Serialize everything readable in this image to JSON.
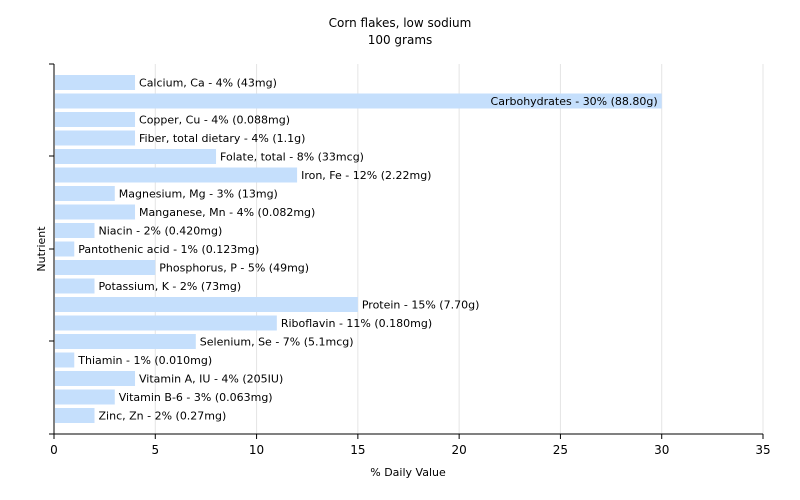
{
  "chart_data": {
    "type": "bar",
    "orientation": "horizontal",
    "title": "Corn flakes, low sodium",
    "subtitle": "100 grams",
    "xlabel": "% Daily Value",
    "ylabel": "Nutrient",
    "xlim": [
      0,
      35
    ],
    "xticks": [
      "0",
      "5",
      "10",
      "15",
      "20",
      "25",
      "30",
      "35"
    ],
    "grid": "vertical",
    "bar_color": "#c5dffc",
    "categories": [
      "Calcium, Ca",
      "Carbohydrates",
      "Copper, Cu",
      "Fiber, total dietary",
      "Folate, total",
      "Iron, Fe",
      "Magnesium, Mg",
      "Manganese, Mn",
      "Niacin",
      "Pantothenic acid",
      "Phosphorus, P",
      "Potassium, K",
      "Protein",
      "Riboflavin",
      "Selenium, Se",
      "Thiamin",
      "Vitamin A, IU",
      "Vitamin B-6",
      "Zinc, Zn"
    ],
    "values": [
      4,
      30,
      4,
      4,
      8,
      12,
      3,
      4,
      2,
      1,
      5,
      2,
      15,
      11,
      7,
      1,
      4,
      3,
      2
    ],
    "labels": [
      "Calcium, Ca - 4% (43mg)",
      "Carbohydrates - 30% (88.80g)",
      "Copper, Cu - 4% (0.088mg)",
      "Fiber, total dietary - 4% (1.1g)",
      "Folate, total - 8% (33mcg)",
      "Iron, Fe - 12% (2.22mg)",
      "Magnesium, Mg - 3% (13mg)",
      "Manganese, Mn - 4% (0.082mg)",
      "Niacin - 2% (0.420mg)",
      "Pantothenic acid - 1% (0.123mg)",
      "Phosphorus, P - 5% (49mg)",
      "Potassium, K - 2% (73mg)",
      "Protein - 15% (7.70g)",
      "Riboflavin - 11% (0.180mg)",
      "Selenium, Se - 7% (5.1mcg)",
      "Thiamin - 1% (0.010mg)",
      "Vitamin A, IU - 4% (205IU)",
      "Vitamin B-6 - 3% (0.063mg)",
      "Zinc, Zn - 2% (0.27mg)"
    ]
  }
}
